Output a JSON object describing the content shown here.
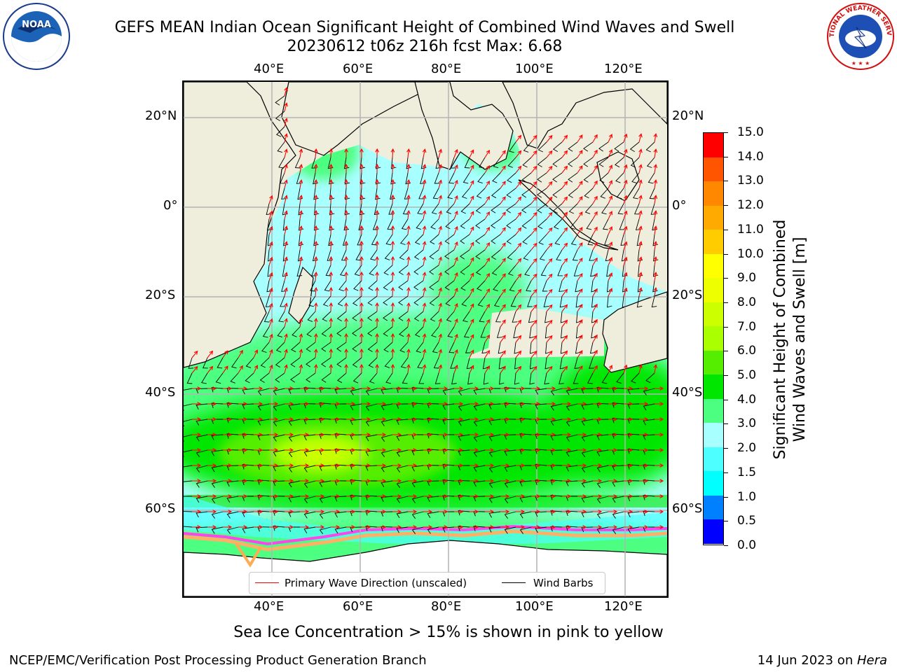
{
  "header": {
    "title_line1": "GEFS MEAN Indian Ocean Significant Height of Combined Wind Waves and Swell",
    "title_line2": "20230612 t06z 216h fcst   Max: 6.68"
  },
  "logos": {
    "noaa": {
      "icon": "noaa-logo-icon",
      "text": "NOAA"
    },
    "nws": {
      "icon": "nws-logo-icon",
      "text": "NATIONAL WEATHER SERVICE"
    }
  },
  "map": {
    "type": "map",
    "lon_ticks_top": [
      "40°E",
      "60°E",
      "80°E",
      "100°E",
      "120°E"
    ],
    "lon_ticks_bottom": [
      "40°E",
      "60°E",
      "80°E",
      "100°E",
      "120°E"
    ],
    "lat_ticks_left": [
      "20°N",
      "0°",
      "20°S",
      "40°S",
      "60°S"
    ],
    "lat_ticks_right": [
      "20°N",
      "0°",
      "20°S",
      "40°S",
      "60°S"
    ],
    "lon_range": [
      20,
      130
    ],
    "lat_range": [
      -75,
      27
    ],
    "grid": true,
    "land_color": "#efeedc",
    "legend": {
      "placement": "bottom-center",
      "entries": [
        {
          "label": "Primary Wave Direction (unscaled)",
          "color": "#ff0000"
        },
        {
          "label": "Wind Barbs",
          "color": "#000000"
        }
      ]
    }
  },
  "colorbar": {
    "title": "Significant Height of Combined Wind Waves and Swell [m]",
    "title_line1": "Significant Height of Combined",
    "title_line2": "Wind Waves and Swell [m]",
    "labels": [
      "15.0",
      "14.0",
      "13.0",
      "12.0",
      "11.0",
      "10.0",
      "9.0",
      "8.0",
      "7.0",
      "6.0",
      "5.0",
      "4.0",
      "3.0",
      "2.0",
      "1.5",
      "1.0",
      "0.5",
      "0.0"
    ],
    "levels": [
      0.0,
      0.5,
      1.0,
      1.5,
      2.0,
      3.0,
      4.0,
      5.0,
      6.0,
      7.0,
      8.0,
      9.0,
      10.0,
      11.0,
      12.0,
      13.0,
      14.0,
      15.0
    ],
    "colors": [
      "#0000ff",
      "#0080ff",
      "#00ffff",
      "#4dffff",
      "#a8ffff",
      "#4dff80",
      "#00e600",
      "#55ee00",
      "#aaff00",
      "#ccff00",
      "#eeff00",
      "#ffff00",
      "#ffcc00",
      "#ffaa00",
      "#ff8800",
      "#ff5500",
      "#ff0000"
    ]
  },
  "footer": {
    "ice_note": "Sea Ice Concentration > 15% is shown in pink to yellow",
    "left": "NCEP/EMC/Verification Post Processing Product Generation Branch",
    "right_date": "14 Jun 2023 on ",
    "right_host": "Hera"
  }
}
